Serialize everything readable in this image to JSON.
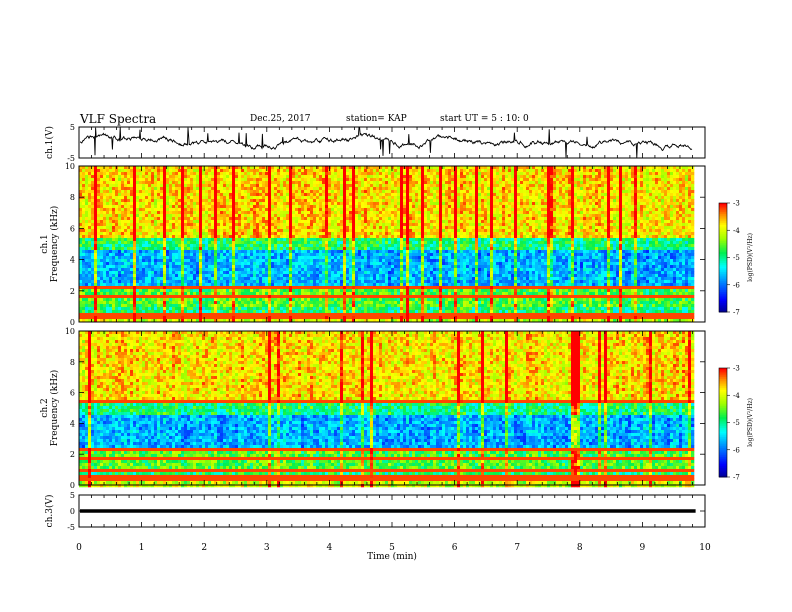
{
  "header": {
    "title": "VLF Spectra",
    "date": "Dec.25, 2017",
    "station": "station= KAP",
    "start_ut": "start  UT =   5  : 10: 0"
  },
  "chart_data": [
    {
      "type": "line",
      "panel": "ch1-waveform",
      "ylabel": "ch.1(V)",
      "ylim": [
        -5,
        5
      ],
      "yticks": [
        "5",
        "-5"
      ],
      "xlim": [
        0,
        10
      ]
    },
    {
      "type": "heatmap",
      "panel": "ch1-spectrogram",
      "ylabel": "ch.1\nFrequency (kHz)",
      "ylim": [
        0,
        10
      ],
      "yticks": [
        "0",
        "2",
        "4",
        "6",
        "8",
        "10"
      ],
      "xlim": [
        0,
        10
      ],
      "data_end_min": 9.8,
      "colorbar": {
        "label": "log(PSD)(V²/Hz)",
        "range": [
          -7,
          -3
        ],
        "ticks": [
          "-3",
          "-4",
          "-5",
          "-6",
          "-7"
        ]
      }
    },
    {
      "type": "heatmap",
      "panel": "ch2-spectrogram",
      "ylabel": "ch.2\nFrequency (kHz)",
      "ylim": [
        0,
        10
      ],
      "yticks": [
        "0",
        "2",
        "4",
        "6",
        "8",
        "10"
      ],
      "xlim": [
        0,
        10
      ],
      "data_end_min": 9.8,
      "colorbar": {
        "label": "log(PSD)(V²/Hz)",
        "range": [
          -7,
          -3
        ],
        "ticks": [
          "-3",
          "-4",
          "-5",
          "-6",
          "-7"
        ]
      }
    },
    {
      "type": "line",
      "panel": "ch3-waveform",
      "ylabel": "ch.3(V)",
      "ylim": [
        -5,
        5
      ],
      "yticks": [
        "5",
        "0",
        "-5"
      ],
      "xlim": [
        0,
        10
      ],
      "xlabel": "Time (min)",
      "xticks": [
        "0",
        "1",
        "2",
        "3",
        "4",
        "5",
        "6",
        "7",
        "8",
        "9",
        "10"
      ],
      "constant_value": 0
    }
  ]
}
